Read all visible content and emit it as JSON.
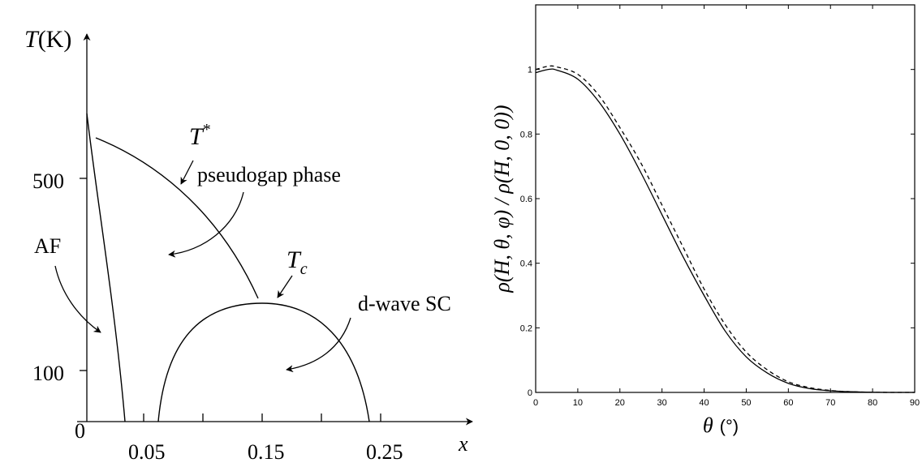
{
  "chart_data": [
    {
      "type": "line",
      "panel": "phase-diagram",
      "x_axis_symbol": "x",
      "y_axis_symbol_T": "T",
      "y_axis_unit_K": "(K)",
      "x_tick_labels": [
        "0",
        "0.05",
        "0.15",
        "0.25"
      ],
      "x_ticks": [
        0,
        0.05,
        0.1,
        0.15,
        0.2,
        0.25
      ],
      "y_tick_labels": [
        "100",
        "500"
      ],
      "y_ticks": [
        100,
        500
      ],
      "xlim": [
        0,
        0.25
      ],
      "ylim": [
        0,
        500
      ],
      "series": [
        {
          "points": [
            [
              0,
              580
            ],
            [
              0.02,
              300
            ],
            [
              0.03,
              180
            ],
            [
              0.035,
              100
            ],
            [
              0.04,
              0
            ]
          ]
        },
        {
          "points": [
            [
              0.008,
              550
            ],
            [
              0.06,
              480
            ],
            [
              0.1,
              390
            ],
            [
              0.13,
              300
            ],
            [
              0.145,
              230
            ]
          ]
        },
        {
          "points": [
            [
              0.05,
              0
            ],
            [
              0.06,
              80
            ],
            [
              0.08,
              150
            ],
            [
              0.1,
              180
            ],
            [
              0.12,
              195
            ],
            [
              0.15,
              200
            ],
            [
              0.18,
              190
            ],
            [
              0.2,
              170
            ],
            [
              0.22,
              120
            ],
            [
              0.24,
              60
            ],
            [
              0.245,
              0
            ]
          ]
        }
      ],
      "labels": {
        "t_star_symbol": "T",
        "t_star_sup": "*",
        "pseudogap": "pseudogap phase",
        "af": "AF",
        "tc_symbol": "T",
        "tc_sub": "c",
        "dwave": "d-wave SC"
      }
    },
    {
      "type": "line",
      "panel": "normalized-ratio",
      "xlabel_symbol": "θ",
      "xlabel_unit": "(°)",
      "ylabel": "ρ(H, θ, φ) / ρ(H, 0, 0))",
      "xlim": [
        0,
        90
      ],
      "ylim": [
        0,
        1.2
      ],
      "x_ticks": [
        0,
        10,
        20,
        30,
        40,
        50,
        60,
        70,
        80,
        90
      ],
      "y_ticks": [
        0,
        0.2,
        0.4,
        0.6,
        0.8,
        1
      ],
      "x_tick_labels": [
        "0",
        "10",
        "20",
        "30",
        "40",
        "50",
        "60",
        "70",
        "80",
        "90"
      ],
      "y_tick_labels": [
        "0",
        "0.2",
        "0.4",
        "0.6",
        "0.8",
        "1"
      ],
      "grid": false,
      "series": [
        {
          "style": "solid",
          "x": [
            0,
            3,
            5,
            10,
            15,
            20,
            25,
            30,
            35,
            40,
            45,
            50,
            55,
            60,
            65,
            70,
            75,
            80,
            85,
            90
          ],
          "y": [
            0.99,
            1.0,
            0.998,
            0.97,
            0.9,
            0.8,
            0.68,
            0.55,
            0.42,
            0.3,
            0.19,
            0.11,
            0.06,
            0.028,
            0.012,
            0.005,
            0.002,
            0.0005,
            0.0,
            0.0
          ]
        },
        {
          "style": "dashed",
          "x": [
            0,
            3,
            5,
            10,
            15,
            20,
            25,
            30,
            35,
            40,
            45,
            50,
            55,
            60,
            65,
            70,
            75,
            80,
            85,
            90
          ],
          "y": [
            1.0,
            1.01,
            1.008,
            0.985,
            0.92,
            0.82,
            0.71,
            0.58,
            0.45,
            0.32,
            0.21,
            0.125,
            0.07,
            0.033,
            0.015,
            0.006,
            0.002,
            0.0005,
            0.0,
            0.0
          ]
        }
      ]
    }
  ]
}
